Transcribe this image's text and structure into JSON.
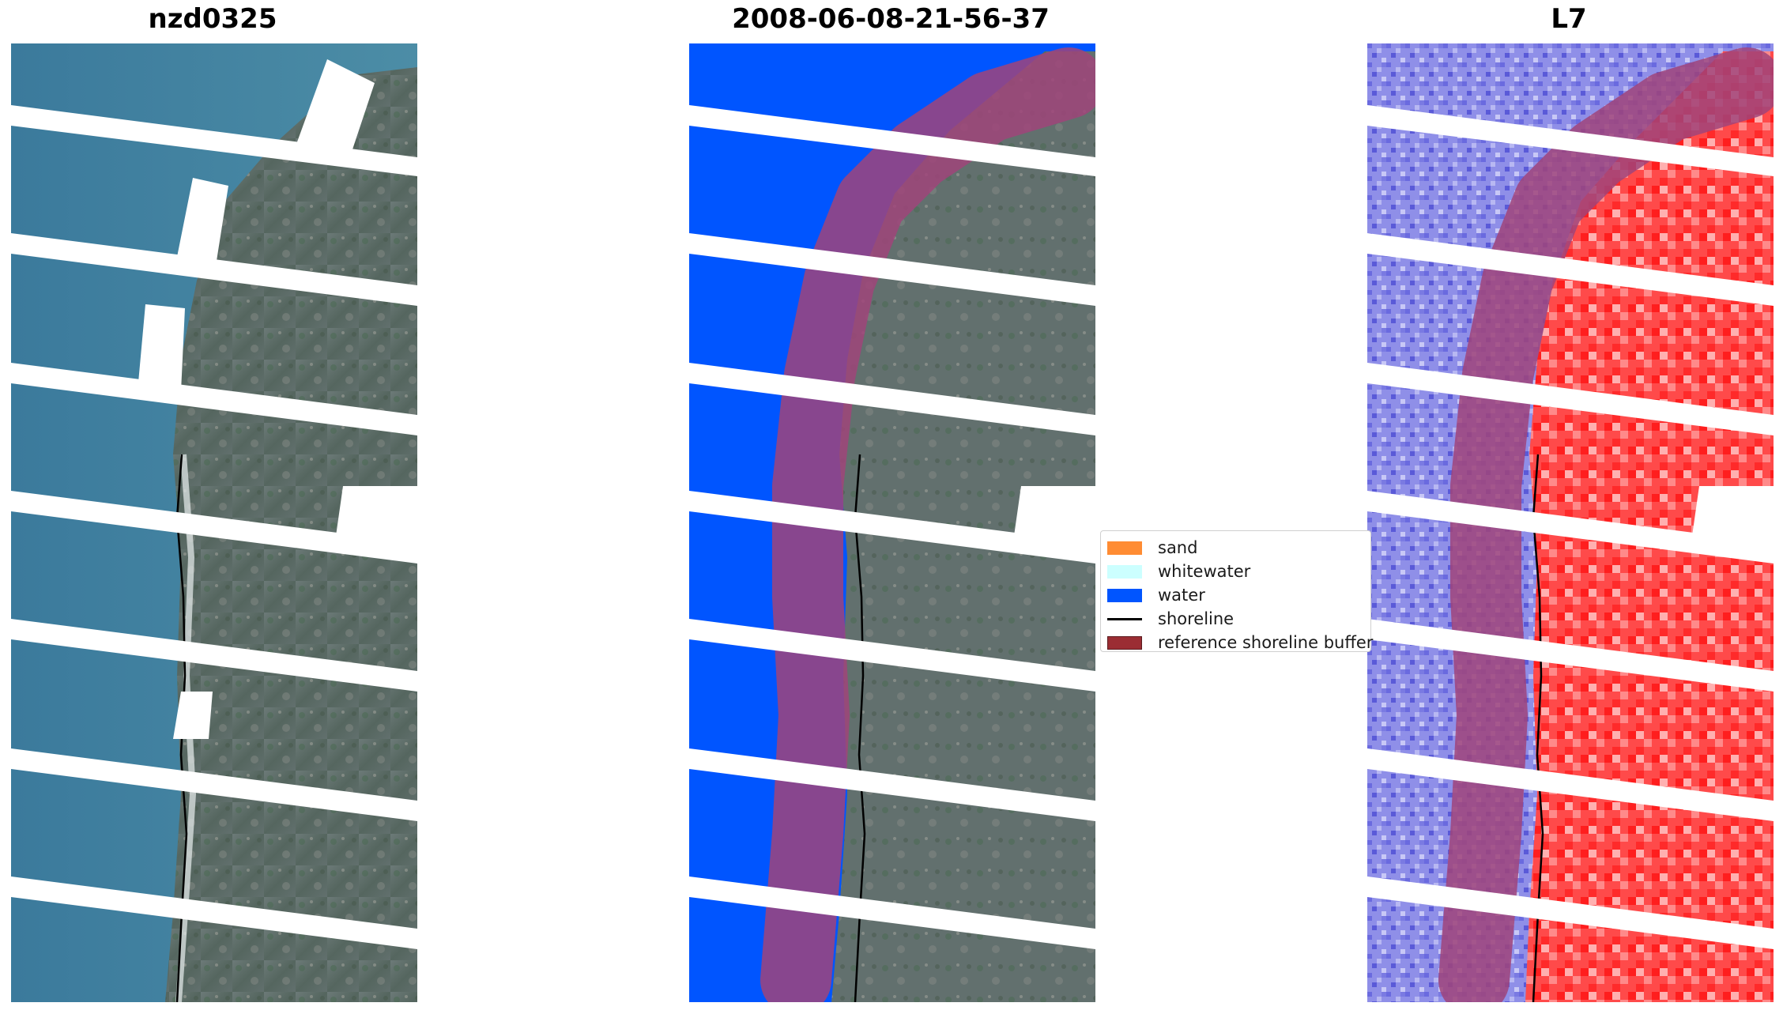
{
  "panels": [
    {
      "title": "nzd0325",
      "kind": "rgb"
    },
    {
      "title": "2008-06-08-21-56-37",
      "kind": "classified"
    },
    {
      "title": "L7",
      "kind": "index"
    }
  ],
  "legend": {
    "items": [
      {
        "label": "sand",
        "color": "#ff8c33",
        "type": "patch"
      },
      {
        "label": "whitewater",
        "color": "#ccffff",
        "type": "patch"
      },
      {
        "label": "water",
        "color": "#0055ff",
        "type": "patch"
      },
      {
        "label": "shoreline",
        "color": "#000000",
        "type": "line"
      },
      {
        "label": "reference shoreline buffer",
        "color": "#9b2d33",
        "type": "patch"
      }
    ]
  },
  "colors": {
    "sea": "#3f7fa0",
    "land": "#5f7072",
    "classified_water": "#0055ff",
    "buffer": "#a0447a",
    "index_water": "#7070e0",
    "index_land": "#ff3a3a"
  }
}
